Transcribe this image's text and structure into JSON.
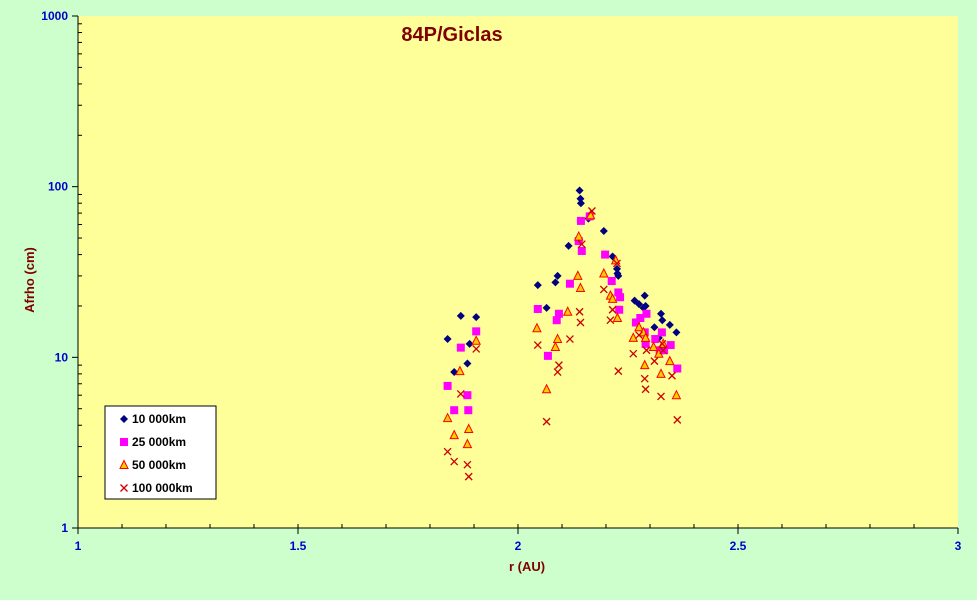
{
  "chart_data": {
    "type": "scatter",
    "title": "84P/Giclas",
    "xlabel": "r (AU)",
    "ylabel": "Afrho (cm)",
    "x_scale": "linear",
    "y_scale": "log",
    "xlim": [
      1,
      3
    ],
    "ylim": [
      1,
      1000
    ],
    "x_ticks": [
      "1",
      "1.5",
      "2",
      "2.5",
      "3"
    ],
    "y_ticks": [
      "1",
      "10",
      "100",
      "1000"
    ],
    "x_minor_step": 0.1,
    "grid": false,
    "legend_position": "bottom-left",
    "colors": {
      "plot_background": "#ffff99",
      "page_background": "#ccffcc",
      "axis": "#000000",
      "tick_text": "#0000cc",
      "label_text": "#800000"
    },
    "series": [
      {
        "name": "10 000km",
        "marker": "diamond",
        "color": "#000080",
        "x": [
          1.84,
          1.855,
          1.87,
          1.885,
          1.89,
          1.905,
          2.045,
          2.065,
          2.085,
          2.09,
          2.115,
          2.14,
          2.142,
          2.143,
          2.16,
          2.195,
          2.215,
          2.225,
          2.226,
          2.228,
          2.265,
          2.275,
          2.285,
          2.288,
          2.29,
          2.31,
          2.32,
          2.325,
          2.328,
          2.345,
          2.36
        ],
        "y": [
          12.8,
          8.2,
          17.5,
          9.2,
          12,
          17.2,
          26.5,
          19.5,
          27.5,
          30,
          45,
          95,
          85,
          80,
          65,
          55,
          39,
          33,
          31,
          30,
          21.5,
          20.5,
          19.5,
          23,
          20,
          15,
          13,
          18,
          16.5,
          15.5,
          14
        ]
      },
      {
        "name": "25 000km",
        "marker": "square",
        "color": "#ff00ff",
        "x": [
          1.84,
          1.855,
          1.87,
          1.885,
          1.887,
          1.905,
          2.045,
          2.068,
          2.088,
          2.093,
          2.118,
          2.138,
          2.143,
          2.145,
          2.163,
          2.198,
          2.213,
          2.228,
          2.23,
          2.232,
          2.268,
          2.278,
          2.288,
          2.29,
          2.292,
          2.312,
          2.322,
          2.327,
          2.332,
          2.347,
          2.362
        ],
        "y": [
          6.8,
          4.9,
          11.4,
          6,
          4.9,
          14.2,
          19.2,
          10.2,
          16.5,
          18,
          27,
          48,
          63,
          42,
          67,
          40,
          28,
          24,
          19,
          22.5,
          16,
          17,
          14,
          12,
          18,
          12.8,
          11,
          14,
          11,
          11.8,
          8.6
        ]
      },
      {
        "name": "50 000km",
        "marker": "triangle",
        "color": "#ff0000",
        "fill": "#ffcc00",
        "x": [
          1.84,
          1.855,
          1.868,
          1.885,
          1.888,
          1.905,
          2.043,
          2.065,
          2.085,
          2.09,
          2.113,
          2.136,
          2.138,
          2.142,
          2.165,
          2.195,
          2.21,
          2.215,
          2.222,
          2.226,
          2.262,
          2.275,
          2.285,
          2.288,
          2.29,
          2.308,
          2.32,
          2.325,
          2.33,
          2.345,
          2.36
        ],
        "y": [
          4.4,
          3.5,
          8.3,
          3.1,
          3.8,
          12.5,
          14.8,
          6.5,
          11.5,
          12.8,
          18.5,
          30,
          51,
          25.5,
          68,
          31,
          23,
          22,
          37,
          17,
          13,
          15,
          14,
          9,
          13,
          11.5,
          10.5,
          8,
          12,
          9.5,
          6
        ]
      },
      {
        "name": "100 000km",
        "marker": "x",
        "color": "#cc0000",
        "x": [
          1.84,
          1.855,
          1.87,
          1.885,
          1.888,
          1.905,
          2.045,
          2.065,
          2.09,
          2.093,
          2.118,
          2.14,
          2.142,
          2.145,
          2.168,
          2.195,
          2.21,
          2.215,
          2.225,
          2.228,
          2.262,
          2.275,
          2.288,
          2.29,
          2.292,
          2.31,
          2.325,
          2.328,
          2.33,
          2.35,
          2.362
        ],
        "y": [
          2.8,
          2.45,
          6.1,
          2.35,
          2,
          11.2,
          11.8,
          4.2,
          8.2,
          9,
          12.8,
          18.5,
          16,
          46,
          72,
          25,
          16.5,
          19,
          35.5,
          8.3,
          10.5,
          13.5,
          7.5,
          6.5,
          11,
          9.5,
          5.9,
          12,
          11,
          7.8,
          4.3
        ]
      }
    ]
  }
}
